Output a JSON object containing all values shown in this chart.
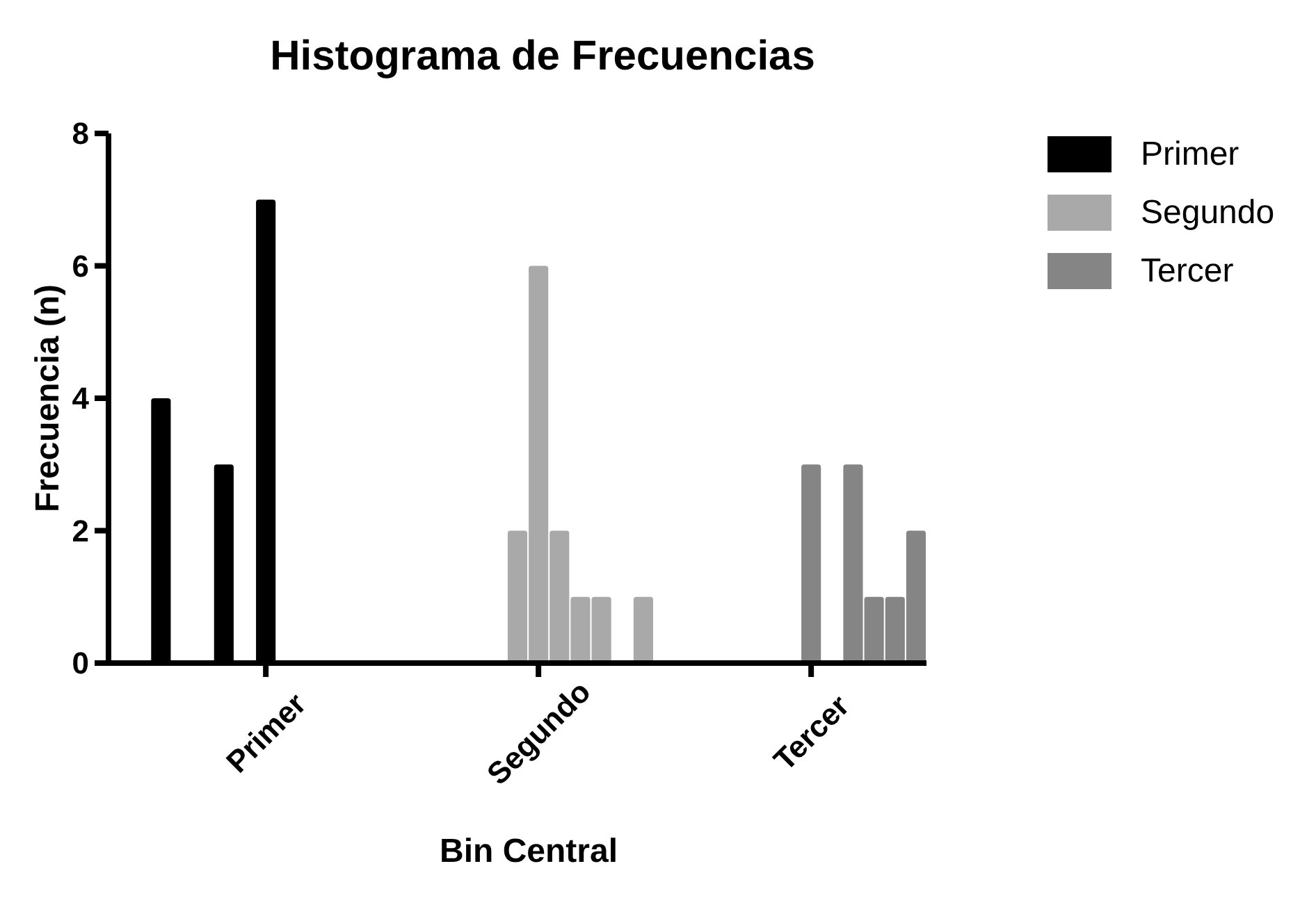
{
  "chart_data": {
    "type": "bar",
    "title": "Histograma de Frecuencias",
    "xlabel": "Bin Central",
    "ylabel": "Frecuencia (n)",
    "categories": [
      null,
      null,
      null,
      null,
      null,
      null,
      null,
      "Primer",
      null,
      null,
      null,
      null,
      null,
      null,
      null,
      null,
      null,
      null,
      null,
      null,
      "Segundo",
      null,
      null,
      null,
      null,
      null,
      null,
      null,
      null,
      null,
      null,
      null,
      null,
      "Tercer",
      null,
      null,
      null,
      null,
      null
    ],
    "series": [
      {
        "name": "Primer",
        "color": "#000000",
        "values": [
          null,
          null,
          4,
          null,
          null,
          3,
          null,
          7,
          null,
          null,
          null,
          null,
          null,
          null,
          null,
          null,
          null,
          null,
          null,
          null,
          null,
          null,
          null,
          null,
          null,
          null,
          null,
          null,
          null,
          null,
          null,
          null,
          null,
          null,
          null,
          null,
          null,
          null,
          null
        ]
      },
      {
        "name": "Segundo",
        "color": "#a9a9a9",
        "values": [
          null,
          null,
          null,
          null,
          null,
          null,
          null,
          null,
          null,
          null,
          null,
          null,
          null,
          null,
          null,
          null,
          null,
          null,
          null,
          2,
          6,
          2,
          1,
          1,
          null,
          1,
          null,
          null,
          null,
          null,
          null,
          null,
          null,
          null,
          null,
          null,
          null,
          null,
          null
        ]
      },
      {
        "name": "Tercer",
        "color": "#858585",
        "values": [
          null,
          null,
          null,
          null,
          null,
          null,
          null,
          null,
          null,
          null,
          null,
          null,
          null,
          null,
          null,
          null,
          null,
          null,
          null,
          null,
          null,
          null,
          null,
          null,
          null,
          null,
          null,
          null,
          null,
          null,
          null,
          null,
          null,
          3,
          null,
          3,
          1,
          1,
          2
        ]
      }
    ],
    "stacked": true,
    "grid": false,
    "ylim": [
      0,
      8
    ],
    "yticks": [
      0,
      2,
      4,
      6,
      8
    ],
    "legend": "top right"
  }
}
